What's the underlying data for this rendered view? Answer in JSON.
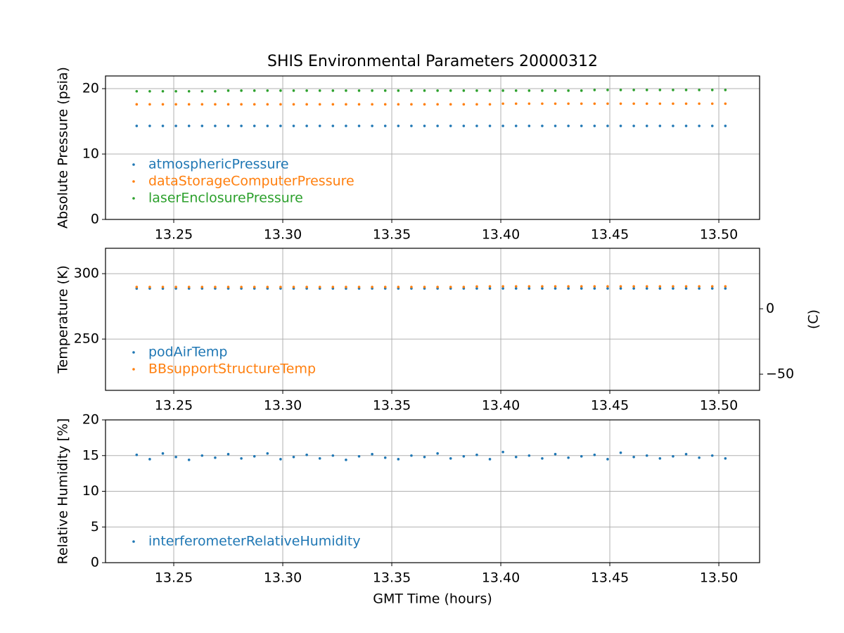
{
  "chart_data": [
    {
      "type": "scatter",
      "title": "SHIS Environmental Parameters 20000312",
      "ylabel": "Absolute Pressure (psia)",
      "x": [
        13.233,
        13.239,
        13.245,
        13.251,
        13.257,
        13.263,
        13.269,
        13.275,
        13.281,
        13.287,
        13.293,
        13.299,
        13.305,
        13.311,
        13.317,
        13.323,
        13.329,
        13.335,
        13.341,
        13.347,
        13.353,
        13.359,
        13.365,
        13.371,
        13.377,
        13.383,
        13.389,
        13.395,
        13.401,
        13.407,
        13.413,
        13.419,
        13.425,
        13.431,
        13.437,
        13.443,
        13.449,
        13.455,
        13.461,
        13.467,
        13.473,
        13.479,
        13.485,
        13.491,
        13.497,
        13.503
      ],
      "series": [
        {
          "name": "atmosphericPressure",
          "color": "#1f77b4",
          "values": [
            14.3,
            14.3,
            14.3,
            14.3,
            14.3,
            14.3,
            14.3,
            14.3,
            14.3,
            14.3,
            14.3,
            14.3,
            14.3,
            14.3,
            14.3,
            14.3,
            14.3,
            14.3,
            14.3,
            14.3,
            14.3,
            14.3,
            14.3,
            14.3,
            14.3,
            14.3,
            14.3,
            14.3,
            14.3,
            14.3,
            14.3,
            14.3,
            14.3,
            14.3,
            14.3,
            14.3,
            14.3,
            14.3,
            14.3,
            14.3,
            14.3,
            14.3,
            14.3,
            14.3,
            14.3,
            14.3
          ]
        },
        {
          "name": "dataStorageComputerPressure",
          "color": "#ff7f0e",
          "values": [
            17.6,
            17.6,
            17.6,
            17.6,
            17.6,
            17.6,
            17.6,
            17.6,
            17.6,
            17.6,
            17.6,
            17.6,
            17.6,
            17.6,
            17.6,
            17.6,
            17.6,
            17.6,
            17.6,
            17.6,
            17.6,
            17.6,
            17.6,
            17.6,
            17.6,
            17.6,
            17.6,
            17.6,
            17.7,
            17.7,
            17.7,
            17.7,
            17.7,
            17.7,
            17.7,
            17.7,
            17.7,
            17.7,
            17.7,
            17.7,
            17.7,
            17.7,
            17.7,
            17.7,
            17.7,
            17.7
          ]
        },
        {
          "name": "laserEnclosurePressure",
          "color": "#2ca02c",
          "values": [
            19.6,
            19.6,
            19.6,
            19.6,
            19.6,
            19.6,
            19.6,
            19.7,
            19.7,
            19.7,
            19.7,
            19.7,
            19.7,
            19.7,
            19.7,
            19.7,
            19.7,
            19.7,
            19.7,
            19.7,
            19.7,
            19.7,
            19.7,
            19.7,
            19.7,
            19.7,
            19.7,
            19.7,
            19.7,
            19.7,
            19.7,
            19.7,
            19.7,
            19.7,
            19.7,
            19.8,
            19.8,
            19.8,
            19.8,
            19.8,
            19.8,
            19.8,
            19.8,
            19.8,
            19.8,
            19.8
          ]
        }
      ],
      "xlim": [
        13.2187,
        13.5187
      ],
      "ylim": [
        0,
        21.94
      ],
      "xticks": [
        13.25,
        {
          "value": 13.3,
          "label": "13.30"
        },
        13.35,
        {
          "value": 13.4,
          "label": "13.40"
        },
        13.45,
        {
          "value": 13.5,
          "label": "13.50"
        }
      ],
      "yticks": [
        0,
        10,
        20
      ],
      "grid": true,
      "legend": "lower left"
    },
    {
      "type": "scatter",
      "ylabel": "Temperature (K)",
      "y2label": "(C)",
      "x": [
        13.233,
        13.239,
        13.245,
        13.251,
        13.257,
        13.263,
        13.269,
        13.275,
        13.281,
        13.287,
        13.293,
        13.299,
        13.305,
        13.311,
        13.317,
        13.323,
        13.329,
        13.335,
        13.341,
        13.347,
        13.353,
        13.359,
        13.365,
        13.371,
        13.377,
        13.383,
        13.389,
        13.395,
        13.401,
        13.407,
        13.413,
        13.419,
        13.425,
        13.431,
        13.437,
        13.443,
        13.449,
        13.455,
        13.461,
        13.467,
        13.473,
        13.479,
        13.485,
        13.491,
        13.497,
        13.503
      ],
      "series": [
        {
          "name": "podAirTemp",
          "color": "#1f77b4",
          "values": [
            288.6,
            288.7,
            288.6,
            288.7,
            288.7,
            288.7,
            288.7,
            288.7,
            288.7,
            288.7,
            288.7,
            288.7,
            288.7,
            288.7,
            288.7,
            288.7,
            288.6,
            288.7,
            288.7,
            288.7,
            288.7,
            288.7,
            288.7,
            288.7,
            288.7,
            288.7,
            288.7,
            288.7,
            288.7,
            288.7,
            288.7,
            288.7,
            288.7,
            288.7,
            288.7,
            288.7,
            288.7,
            288.7,
            288.7,
            288.7,
            288.7,
            288.7,
            288.7,
            288.7,
            288.7,
            288.7
          ]
        },
        {
          "name": "BBsupportStructureTemp",
          "color": "#ff7f0e",
          "values": [
            289.8,
            289.8,
            289.8,
            289.8,
            289.8,
            289.8,
            289.8,
            289.8,
            289.8,
            289.8,
            289.8,
            289.8,
            289.8,
            289.8,
            289.8,
            289.8,
            289.8,
            289.8,
            289.8,
            289.8,
            289.8,
            289.8,
            289.8,
            289.8,
            289.8,
            289.8,
            290.2,
            290.3,
            290.3,
            290.3,
            290.3,
            290.3,
            290.3,
            290.3,
            290.3,
            290.3,
            290.3,
            290.3,
            290.3,
            290.3,
            290.3,
            290.3,
            290.3,
            290.3,
            290.3,
            290.3
          ]
        }
      ],
      "xlim": [
        13.2187,
        13.5187
      ],
      "ylim": [
        210.8,
        319.4
      ],
      "y2lim": [
        -62.35,
        46.25
      ],
      "xticks": [
        13.25,
        {
          "value": 13.3,
          "label": "13.30"
        },
        13.35,
        {
          "value": 13.4,
          "label": "13.40"
        },
        13.45,
        {
          "value": 13.5,
          "label": "13.50"
        }
      ],
      "yticks": [
        250,
        300
      ],
      "y2ticks": [
        {
          "value": -50,
          "label": "−50"
        },
        0
      ],
      "grid": true,
      "legend": "lower left"
    },
    {
      "type": "scatter",
      "ylabel": "Relative Humidity [%]",
      "xlabel": "GMT Time (hours)",
      "x": [
        13.233,
        13.239,
        13.245,
        13.251,
        13.257,
        13.263,
        13.269,
        13.275,
        13.281,
        13.287,
        13.293,
        13.299,
        13.305,
        13.311,
        13.317,
        13.323,
        13.329,
        13.335,
        13.341,
        13.347,
        13.353,
        13.359,
        13.365,
        13.371,
        13.377,
        13.383,
        13.389,
        13.395,
        13.401,
        13.407,
        13.413,
        13.419,
        13.425,
        13.431,
        13.437,
        13.443,
        13.449,
        13.455,
        13.461,
        13.467,
        13.473,
        13.479,
        13.485,
        13.491,
        13.497,
        13.503
      ],
      "series": [
        {
          "name": "interferometerRelativeHumidity",
          "color": "#1f77b4",
          "values": [
            15.1,
            14.5,
            15.3,
            14.8,
            14.4,
            15.0,
            14.7,
            15.2,
            14.6,
            14.9,
            15.3,
            14.5,
            14.8,
            15.1,
            14.6,
            15.0,
            14.4,
            14.9,
            15.2,
            14.7,
            14.5,
            15.0,
            14.8,
            15.3,
            14.6,
            14.9,
            15.1,
            14.5,
            15.5,
            14.8,
            15.0,
            14.6,
            15.2,
            14.7,
            14.9,
            15.1,
            14.5,
            15.4,
            14.8,
            15.0,
            14.6,
            14.9,
            15.2,
            14.7,
            15.0,
            14.6
          ]
        }
      ],
      "xlim": [
        13.2187,
        13.5187
      ],
      "ylim": [
        0,
        20
      ],
      "xticks": [
        13.25,
        {
          "value": 13.3,
          "label": "13.30"
        },
        13.35,
        {
          "value": 13.4,
          "label": "13.40"
        },
        13.45,
        {
          "value": 13.5,
          "label": "13.50"
        }
      ],
      "yticks": [
        0,
        5,
        10,
        15,
        20
      ],
      "grid": true,
      "legend": "lower left"
    }
  ]
}
